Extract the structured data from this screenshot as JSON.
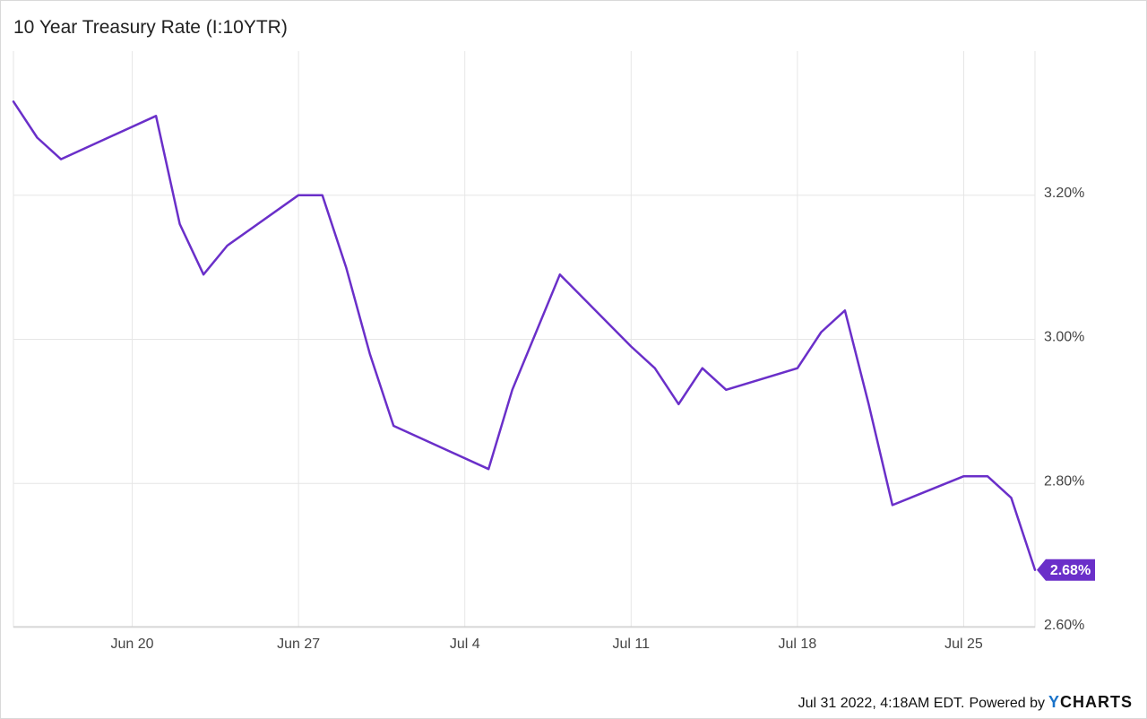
{
  "chart_data": {
    "type": "line",
    "title": "10 Year Treasury Rate (I:10YTR)",
    "y_ticks": [
      "3.20%",
      "3.00%",
      "2.80%",
      "2.60%"
    ],
    "y_tick_values": [
      3.2,
      3.0,
      2.8,
      2.6
    ],
    "ylim": [
      2.6,
      3.4
    ],
    "x_ticks": [
      "Jun 20",
      "Jun 27",
      "Jul 4",
      "Jul 11",
      "Jul 18",
      "Jul 25"
    ],
    "x_tick_dates": [
      "2022-06-20",
      "2022-06-27",
      "2022-07-04",
      "2022-07-11",
      "2022-07-18",
      "2022-07-25"
    ],
    "xlim": [
      "2022-06-15",
      "2022-07-28"
    ],
    "grid": true,
    "series": [
      {
        "color": "#6a2fc9",
        "x": [
          "2022-06-15",
          "2022-06-16",
          "2022-06-17",
          "2022-06-21",
          "2022-06-22",
          "2022-06-23",
          "2022-06-24",
          "2022-06-27",
          "2022-06-28",
          "2022-06-29",
          "2022-06-30",
          "2022-07-01",
          "2022-07-05",
          "2022-07-06",
          "2022-07-08",
          "2022-07-11",
          "2022-07-12",
          "2022-07-13",
          "2022-07-14",
          "2022-07-15",
          "2022-07-18",
          "2022-07-19",
          "2022-07-20",
          "2022-07-21",
          "2022-07-22",
          "2022-07-25",
          "2022-07-26",
          "2022-07-27",
          "2022-07-28"
        ],
        "values": [
          3.33,
          3.28,
          3.25,
          3.31,
          3.16,
          3.09,
          3.13,
          3.2,
          3.2,
          3.1,
          2.98,
          2.88,
          2.82,
          2.93,
          3.09,
          2.99,
          2.96,
          2.91,
          2.96,
          2.93,
          2.96,
          3.01,
          3.04,
          2.91,
          2.77,
          2.81,
          2.81,
          2.78,
          2.68
        ]
      }
    ],
    "last_value_label": "2.68%"
  },
  "footer": {
    "timestamp": "Jul 31 2022, 4:18AM EDT.",
    "powered_by": "Powered by",
    "brand_y": "Y",
    "brand_rest": "CHARTS"
  }
}
